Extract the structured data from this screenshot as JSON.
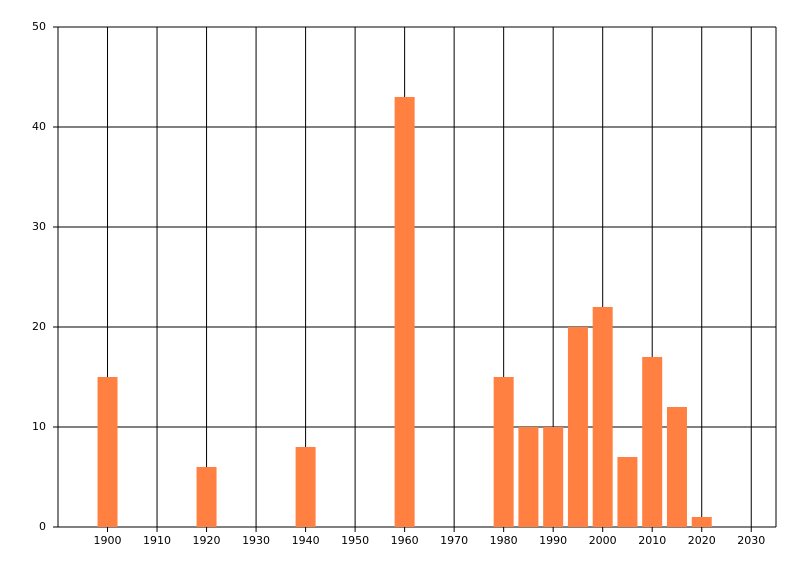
{
  "chart_data": {
    "type": "bar",
    "x": [
      1900,
      1920,
      1940,
      1960,
      1980,
      1985,
      1990,
      1995,
      2000,
      2005,
      2010,
      2015,
      2020
    ],
    "values": [
      15,
      6,
      8,
      43,
      15,
      10,
      10,
      20,
      22,
      7,
      17,
      12,
      1
    ],
    "color": "#ff8040",
    "xlim": [
      1890,
      2035
    ],
    "xticks": [
      1900,
      1910,
      1920,
      1930,
      1940,
      1950,
      1960,
      1970,
      1980,
      1990,
      2000,
      2010,
      2020,
      2030
    ],
    "ylim": [
      0,
      50
    ],
    "yticks": [
      0,
      10,
      20,
      30,
      40,
      50
    ],
    "grid": true
  }
}
